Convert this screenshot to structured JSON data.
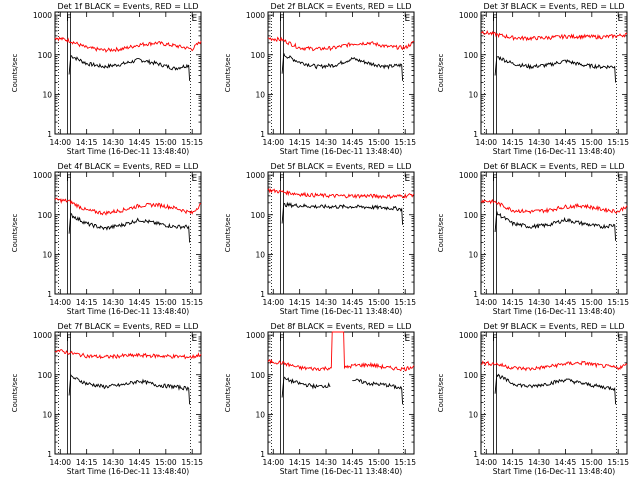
{
  "figure": {
    "xlabel": "Start Time (16-Dec-11 13:48:40)",
    "ylabel": "Counts/sec"
  },
  "chart_data": [
    {
      "type": "line",
      "title": "Det 1f BLACK = Events, RED = LLD",
      "xlabel": "Start Time (16-Dec-11 13:48:40)",
      "ylabel": "Counts/sec",
      "x_range": [
        "13:57",
        "15:20"
      ],
      "ylim": [
        1,
        1200
      ],
      "yscale": "log",
      "xticks": [
        "14:00",
        "14:15",
        "14:30",
        "14:45",
        "15:00",
        "15:15"
      ],
      "yticks": [
        "1",
        "10",
        "100",
        "1000"
      ],
      "markers": {
        "S_left": "13:59",
        "F": "14:05",
        "E": "15:14"
      },
      "series": [
        {
          "name": "Events",
          "color": "#000000",
          "x": [
            "14:06",
            "14:15",
            "14:25",
            "14:35",
            "14:45",
            "14:55",
            "15:05",
            "15:13"
          ],
          "values": [
            95,
            60,
            50,
            58,
            75,
            60,
            45,
            55
          ]
        },
        {
          "name": "LLD",
          "color": "#ff0000",
          "x": [
            "13:57",
            "14:05",
            "14:15",
            "14:25",
            "14:35",
            "14:45",
            "14:55",
            "15:05",
            "15:15",
            "15:20"
          ],
          "values": [
            270,
            230,
            150,
            130,
            140,
            180,
            200,
            170,
            140,
            220
          ]
        }
      ]
    },
    {
      "type": "line",
      "title": "Det 2f BLACK = Events, RED = LLD",
      "xlabel": "Start Time (16-Dec-11 13:48:40)",
      "ylabel": "Counts/sec",
      "x_range": [
        "13:57",
        "15:20"
      ],
      "ylim": [
        1,
        1200
      ],
      "yscale": "log",
      "xticks": [
        "14:00",
        "14:15",
        "14:30",
        "14:45",
        "15:00",
        "15:15"
      ],
      "yticks": [
        "1",
        "10",
        "100",
        "1000"
      ],
      "markers": {
        "S_left": "13:59",
        "F": "14:05",
        "E": "15:14"
      },
      "series": [
        {
          "name": "Events",
          "color": "#000000",
          "x": [
            "14:06",
            "14:15",
            "14:25",
            "14:35",
            "14:45",
            "14:55",
            "15:05",
            "15:13"
          ],
          "values": [
            100,
            65,
            50,
            55,
            80,
            60,
            50,
            55
          ]
        },
        {
          "name": "LLD",
          "color": "#ff0000",
          "x": [
            "13:57",
            "14:05",
            "14:15",
            "14:25",
            "14:35",
            "14:45",
            "14:55",
            "15:05",
            "15:15",
            "15:20"
          ],
          "values": [
            260,
            240,
            150,
            140,
            150,
            190,
            200,
            160,
            150,
            210
          ]
        }
      ]
    },
    {
      "type": "line",
      "title": "Det 3f BLACK = Events, RED = LLD",
      "xlabel": "Start Time (16-Dec-11 13:48:40)",
      "ylabel": "Counts/sec",
      "x_range": [
        "13:57",
        "15:20"
      ],
      "ylim": [
        1,
        1200
      ],
      "yscale": "log",
      "xticks": [
        "14:00",
        "14:15",
        "14:30",
        "14:45",
        "15:00",
        "15:15"
      ],
      "yticks": [
        "1",
        "10",
        "100",
        "1000"
      ],
      "markers": {
        "S_left": "13:59",
        "F": "14:05",
        "E": "15:14"
      },
      "series": [
        {
          "name": "Events",
          "color": "#000000",
          "x": [
            "14:06",
            "14:15",
            "14:25",
            "14:35",
            "14:45",
            "14:55",
            "15:05",
            "15:13"
          ],
          "values": [
            90,
            60,
            50,
            55,
            70,
            55,
            50,
            50
          ]
        },
        {
          "name": "LLD",
          "color": "#ff0000",
          "x": [
            "13:57",
            "14:05",
            "14:15",
            "14:25",
            "14:35",
            "14:45",
            "14:55",
            "15:05",
            "15:15",
            "15:20"
          ],
          "values": [
            380,
            330,
            270,
            260,
            270,
            290,
            290,
            280,
            300,
            330
          ]
        }
      ]
    },
    {
      "type": "line",
      "title": "Det 4f BLACK = Events, RED = LLD",
      "xlabel": "Start Time (16-Dec-11 13:48:40)",
      "ylabel": "Counts/sec",
      "x_range": [
        "13:57",
        "15:20"
      ],
      "ylim": [
        1,
        1200
      ],
      "yscale": "log",
      "xticks": [
        "14:00",
        "14:15",
        "14:30",
        "14:45",
        "15:00",
        "15:15"
      ],
      "yticks": [
        "1",
        "10",
        "100",
        "1000"
      ],
      "markers": {
        "S_left": "13:59",
        "F": "14:05",
        "E": "15:14"
      },
      "series": [
        {
          "name": "Events",
          "color": "#000000",
          "x": [
            "14:06",
            "14:15",
            "14:25",
            "14:35",
            "14:45",
            "14:55",
            "15:05",
            "15:13"
          ],
          "values": [
            100,
            60,
            45,
            55,
            75,
            60,
            50,
            50
          ]
        },
        {
          "name": "LLD",
          "color": "#ff0000",
          "x": [
            "13:57",
            "14:05",
            "14:15",
            "14:25",
            "14:35",
            "14:45",
            "14:55",
            "15:05",
            "15:15",
            "15:20"
          ],
          "values": [
            240,
            220,
            130,
            110,
            130,
            170,
            180,
            150,
            110,
            190
          ]
        }
      ]
    },
    {
      "type": "line",
      "title": "Det 5f BLACK = Events, RED = LLD",
      "xlabel": "Start Time (16-Dec-11 13:48:40)",
      "ylabel": "Counts/sec",
      "x_range": [
        "13:57",
        "15:20"
      ],
      "ylim": [
        1,
        1200
      ],
      "yscale": "log",
      "xticks": [
        "14:00",
        "14:15",
        "14:30",
        "14:45",
        "15:00",
        "15:15"
      ],
      "yticks": [
        "1",
        "10",
        "100",
        "1000"
      ],
      "markers": {
        "S_left": "13:59",
        "F": "14:05",
        "E": "15:14"
      },
      "series": [
        {
          "name": "Events",
          "color": "#000000",
          "x": [
            "14:06",
            "14:15",
            "14:25",
            "14:35",
            "14:45",
            "14:55",
            "15:05",
            "15:13"
          ],
          "values": [
            180,
            170,
            160,
            160,
            160,
            155,
            150,
            140
          ]
        },
        {
          "name": "LLD",
          "color": "#ff0000",
          "x": [
            "13:57",
            "14:05",
            "14:15",
            "14:25",
            "14:35",
            "14:45",
            "14:55",
            "15:05",
            "15:15",
            "15:20"
          ],
          "values": [
            420,
            380,
            330,
            310,
            300,
            300,
            300,
            290,
            300,
            330
          ]
        }
      ]
    },
    {
      "type": "line",
      "title": "Det 6f BLACK = Events, RED = LLD",
      "xlabel": "Start Time (16-Dec-11 13:48:40)",
      "ylabel": "Counts/sec",
      "x_range": [
        "13:57",
        "15:20"
      ],
      "ylim": [
        1,
        1200
      ],
      "yscale": "log",
      "xticks": [
        "14:00",
        "14:15",
        "14:30",
        "14:45",
        "15:00",
        "15:15"
      ],
      "yticks": [
        "1",
        "10",
        "100",
        "1000"
      ],
      "markers": {
        "S_left": "13:59",
        "F": "14:05",
        "E": "15:14"
      },
      "series": [
        {
          "name": "Events",
          "color": "#000000",
          "x": [
            "14:06",
            "14:15",
            "14:25",
            "14:35",
            "14:45",
            "14:55",
            "15:05",
            "15:13"
          ],
          "values": [
            110,
            60,
            50,
            55,
            75,
            60,
            50,
            55
          ]
        },
        {
          "name": "LLD",
          "color": "#ff0000",
          "x": [
            "13:57",
            "14:05",
            "14:15",
            "14:25",
            "14:35",
            "14:45",
            "14:55",
            "15:05",
            "15:15",
            "15:20"
          ],
          "values": [
            230,
            210,
            130,
            120,
            130,
            160,
            170,
            140,
            120,
            170
          ]
        }
      ]
    },
    {
      "type": "line",
      "title": "Det 7f BLACK = Events, RED = LLD",
      "xlabel": "Start Time (16-Dec-11 13:48:40)",
      "ylabel": "Counts/sec",
      "x_range": [
        "13:57",
        "15:20"
      ],
      "ylim": [
        1,
        1200
      ],
      "yscale": "log",
      "xticks": [
        "14:00",
        "14:15",
        "14:30",
        "14:45",
        "15:00",
        "15:15"
      ],
      "yticks": [
        "1",
        "10",
        "100",
        "1000"
      ],
      "markers": {
        "S_left": "13:59",
        "F": "14:05",
        "E": "15:14"
      },
      "series": [
        {
          "name": "Events",
          "color": "#000000",
          "x": [
            "14:06",
            "14:15",
            "14:25",
            "14:35",
            "14:45",
            "14:55",
            "15:05",
            "15:13"
          ],
          "values": [
            90,
            60,
            50,
            55,
            70,
            55,
            50,
            45
          ]
        },
        {
          "name": "LLD",
          "color": "#ff0000",
          "x": [
            "13:57",
            "14:05",
            "14:15",
            "14:25",
            "14:35",
            "14:45",
            "14:55",
            "15:05",
            "15:15",
            "15:20"
          ],
          "values": [
            420,
            360,
            300,
            280,
            300,
            310,
            300,
            290,
            280,
            330
          ]
        }
      ]
    },
    {
      "type": "line",
      "title": "Det 8f BLACK = Events, RED = LLD",
      "xlabel": "Start Time (16-Dec-11 13:48:40)",
      "ylabel": "Counts/sec",
      "x_range": [
        "13:57",
        "15:20"
      ],
      "ylim": [
        1,
        1200
      ],
      "yscale": "log",
      "xticks": [
        "14:00",
        "14:15",
        "14:30",
        "14:45",
        "15:00",
        "15:15"
      ],
      "yticks": [
        "1",
        "10",
        "100",
        "1000"
      ],
      "markers": {
        "S_left": "13:59",
        "F": "14:05",
        "E": "15:14"
      },
      "series": [
        {
          "name": "Events",
          "color": "#000000",
          "x": [
            "14:06",
            "14:15",
            "14:25",
            "14:33",
            "14:40",
            "14:45",
            "14:55",
            "15:05",
            "15:13"
          ],
          "values": [
            80,
            60,
            50,
            55,
            null,
            75,
            60,
            55,
            45
          ]
        },
        {
          "name": "LLD",
          "color": "#ff0000",
          "x": [
            "13:57",
            "14:05",
            "14:15",
            "14:25",
            "14:33",
            "14:34",
            "14:40",
            "14:41",
            "14:45",
            "14:55",
            "15:05",
            "15:15",
            "15:20"
          ],
          "values": [
            220,
            200,
            150,
            140,
            150,
            1200,
            1200,
            150,
            170,
            180,
            150,
            140,
            170
          ]
        }
      ]
    },
    {
      "type": "line",
      "title": "Det 9f BLACK = Events, RED = LLD",
      "xlabel": "Start Time (16-Dec-11 13:48:40)",
      "ylabel": "Counts/sec",
      "x_range": [
        "13:57",
        "15:20"
      ],
      "ylim": [
        1,
        1200
      ],
      "yscale": "log",
      "xticks": [
        "14:00",
        "14:15",
        "14:30",
        "14:45",
        "15:00",
        "15:15"
      ],
      "yticks": [
        "1",
        "10",
        "100",
        "1000"
      ],
      "markers": {
        "S_left": "13:59",
        "F": "14:05",
        "E": "15:14"
      },
      "series": [
        {
          "name": "Events",
          "color": "#000000",
          "x": [
            "14:06",
            "14:15",
            "14:25",
            "14:35",
            "14:45",
            "14:55",
            "15:05",
            "15:13"
          ],
          "values": [
            100,
            60,
            50,
            60,
            75,
            60,
            50,
            45
          ]
        },
        {
          "name": "LLD",
          "color": "#ff0000",
          "x": [
            "13:57",
            "14:05",
            "14:15",
            "14:25",
            "14:35",
            "14:45",
            "14:55",
            "15:05",
            "15:15",
            "15:20"
          ],
          "values": [
            200,
            190,
            150,
            140,
            160,
            190,
            200,
            170,
            150,
            180
          ]
        }
      ]
    }
  ]
}
